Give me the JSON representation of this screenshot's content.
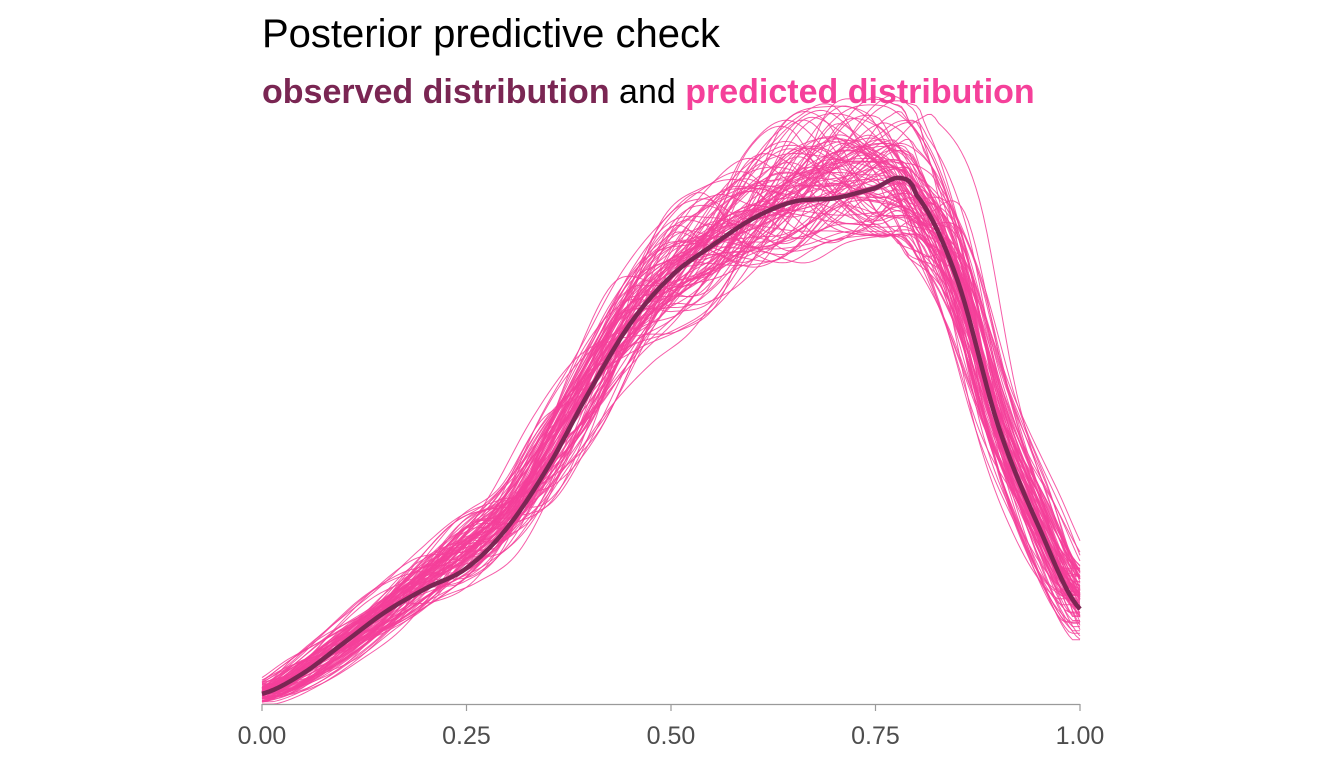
{
  "chart_data": {
    "type": "line",
    "title": "Posterior predictive check",
    "subtitle": {
      "observed_label": "observed distribution",
      "connector": "and",
      "predicted_label": "predicted distribution"
    },
    "xlabel": "",
    "ylabel": "",
    "xlim": [
      0,
      1
    ],
    "ylim": [
      0,
      1.75
    ],
    "x_ticks": [
      0,
      0.25,
      0.5,
      0.75,
      1
    ],
    "x_tick_labels": [
      "0.00",
      "0.25",
      "0.50",
      "0.75",
      "1.00"
    ],
    "grid": false,
    "y_axis_shown": false,
    "colors": {
      "observed": "#7a2653",
      "predicted": "#f5409a",
      "axis": "#9a9a9a"
    },
    "observed_series": {
      "name": "observed distribution",
      "x": [
        0,
        0.05,
        0.1,
        0.15,
        0.2,
        0.25,
        0.3,
        0.35,
        0.4,
        0.45,
        0.5,
        0.55,
        0.6,
        0.65,
        0.7,
        0.75,
        0.78,
        0.8,
        0.85,
        0.9,
        0.95,
        1.0
      ],
      "y": [
        0.03,
        0.09,
        0.18,
        0.27,
        0.34,
        0.4,
        0.52,
        0.7,
        0.92,
        1.12,
        1.26,
        1.35,
        1.43,
        1.48,
        1.49,
        1.52,
        1.55,
        1.5,
        1.25,
        0.82,
        0.52,
        0.28
      ]
    },
    "predicted_draws": {
      "name": "predicted distribution",
      "count": 100,
      "description_x": [
        0,
        0.05,
        0.1,
        0.15,
        0.2,
        0.25,
        0.3,
        0.35,
        0.4,
        0.45,
        0.5,
        0.55,
        0.6,
        0.65,
        0.7,
        0.75,
        0.78,
        0.8,
        0.85,
        0.9,
        0.95,
        1.0
      ],
      "band_low": [
        0.0,
        0.05,
        0.13,
        0.22,
        0.3,
        0.36,
        0.45,
        0.6,
        0.8,
        0.99,
        1.1,
        1.18,
        1.25,
        1.3,
        1.36,
        1.38,
        1.38,
        1.32,
        1.1,
        0.72,
        0.4,
        0.18
      ],
      "band_high": [
        0.06,
        0.14,
        0.24,
        0.34,
        0.45,
        0.55,
        0.64,
        0.84,
        1.05,
        1.27,
        1.42,
        1.52,
        1.63,
        1.72,
        1.76,
        1.78,
        1.77,
        1.72,
        1.5,
        0.95,
        0.64,
        0.4
      ]
    }
  }
}
